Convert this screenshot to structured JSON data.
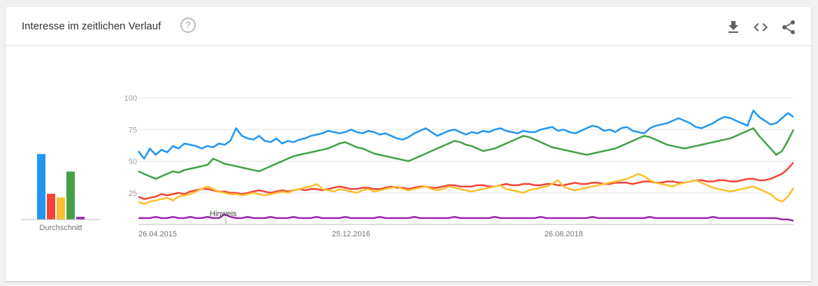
{
  "header": {
    "title": "Interesse im zeitlichen Verlauf",
    "help_icon": "help-circle-icon",
    "help_glyph": "?",
    "tools": [
      "download-icon",
      "embed-code-icon",
      "share-icon"
    ]
  },
  "avg_label": "Durchschnitt",
  "note_label": "Hinweis",
  "colors": [
    "#2196f3",
    "#f44336",
    "#fbc02d",
    "#43a047",
    "#9c27b0"
  ],
  "chart_data": [
    {
      "type": "bar",
      "categories": [
        "",
        "",
        "",
        "",
        ""
      ],
      "values": [
        71,
        28,
        24,
        52,
        3
      ],
      "xlabel": "Durchschnitt",
      "ylim": [
        0,
        100
      ]
    },
    {
      "type": "line",
      "x_tick_labels": [
        "26.04.2015",
        "25.12.2016",
        "26.08.2018"
      ],
      "y_ticks": [
        25,
        50,
        75,
        100
      ],
      "ylim": [
        0,
        100
      ],
      "grid": true,
      "series": [
        {
          "values": [
            58,
            52,
            60,
            55,
            59,
            57,
            62,
            60,
            64,
            63,
            62,
            60,
            62,
            61,
            64,
            63,
            66,
            76,
            70,
            68,
            67,
            70,
            66,
            65,
            68,
            64,
            66,
            65,
            67,
            68,
            70,
            71,
            72,
            74,
            73,
            72,
            73,
            75,
            73,
            72,
            74,
            73,
            71,
            72,
            70,
            68,
            67,
            69,
            72,
            74,
            76,
            73,
            70,
            72,
            74,
            75,
            73,
            71,
            73,
            72,
            74,
            73,
            75,
            76,
            74,
            73,
            72,
            74,
            73,
            73,
            75,
            76,
            77,
            74,
            75,
            73,
            72,
            74,
            76,
            78,
            77,
            74,
            75,
            73,
            76,
            77,
            74,
            73,
            72,
            76,
            78,
            79,
            80,
            82,
            84,
            82,
            80,
            77,
            76,
            78,
            80,
            83,
            85,
            84,
            82,
            80,
            78,
            90,
            85,
            82,
            79,
            80,
            84,
            88,
            85
          ]
        },
        {
          "values": [
            22,
            20,
            21,
            22,
            24,
            23,
            24,
            25,
            24,
            26,
            27,
            28,
            28,
            27,
            26,
            26,
            25,
            25,
            24,
            25,
            26,
            27,
            26,
            25,
            26,
            27,
            26,
            27,
            28,
            27,
            28,
            28,
            27,
            28,
            29,
            30,
            29,
            28,
            28,
            29,
            29,
            28,
            28,
            29,
            30,
            29,
            29,
            28,
            29,
            30,
            30,
            29,
            29,
            30,
            31,
            31,
            30,
            30,
            30,
            31,
            31,
            30,
            30,
            31,
            32,
            31,
            31,
            32,
            32,
            31,
            31,
            32,
            32,
            31,
            31,
            32,
            33,
            32,
            32,
            33,
            33,
            32,
            32,
            33,
            33,
            33,
            32,
            33,
            34,
            34,
            33,
            33,
            34,
            34,
            33,
            33,
            34,
            35,
            35,
            34,
            34,
            35,
            35,
            34,
            34,
            35,
            36,
            36,
            35,
            35,
            36,
            38,
            40,
            44,
            49
          ]
        },
        {
          "values": [
            18,
            16,
            18,
            19,
            20,
            21,
            19,
            22,
            23,
            24,
            26,
            28,
            30,
            28,
            26,
            25,
            24,
            24,
            23,
            24,
            25,
            24,
            23,
            24,
            25,
            26,
            25,
            27,
            28,
            29,
            30,
            32,
            28,
            27,
            26,
            28,
            27,
            26,
            25,
            27,
            28,
            26,
            27,
            28,
            29,
            30,
            28,
            27,
            28,
            29,
            30,
            28,
            27,
            28,
            30,
            29,
            28,
            27,
            26,
            27,
            28,
            29,
            30,
            31,
            28,
            27,
            26,
            25,
            27,
            28,
            29,
            30,
            32,
            35,
            30,
            28,
            27,
            28,
            29,
            30,
            31,
            32,
            33,
            34,
            35,
            36,
            38,
            40,
            38,
            35,
            33,
            32,
            31,
            30,
            32,
            33,
            34,
            35,
            33,
            31,
            29,
            28,
            27,
            26,
            27,
            28,
            29,
            30,
            28,
            26,
            24,
            20,
            18,
            22,
            29
          ]
        },
        {
          "values": [
            42,
            40,
            38,
            36,
            38,
            40,
            42,
            41,
            43,
            44,
            45,
            46,
            47,
            52,
            50,
            48,
            47,
            46,
            45,
            44,
            43,
            42,
            44,
            46,
            48,
            50,
            52,
            54,
            55,
            56,
            57,
            58,
            59,
            60,
            62,
            64,
            65,
            63,
            61,
            60,
            58,
            56,
            55,
            54,
            53,
            52,
            51,
            50,
            52,
            54,
            56,
            58,
            60,
            62,
            64,
            66,
            65,
            63,
            62,
            60,
            58,
            59,
            60,
            62,
            64,
            66,
            68,
            70,
            69,
            67,
            65,
            63,
            61,
            60,
            59,
            58,
            57,
            56,
            55,
            56,
            57,
            58,
            59,
            60,
            62,
            64,
            66,
            68,
            70,
            69,
            67,
            65,
            63,
            62,
            61,
            60,
            61,
            62,
            63,
            64,
            65,
            66,
            67,
            68,
            70,
            72,
            74,
            76,
            70,
            65,
            60,
            55,
            58,
            66,
            75
          ]
        },
        {
          "values": [
            5,
            5,
            5,
            6,
            5,
            5,
            6,
            5,
            5,
            6,
            5,
            5,
            6,
            5,
            5,
            8,
            6,
            5,
            5,
            6,
            5,
            5,
            5,
            6,
            5,
            5,
            5,
            6,
            5,
            5,
            5,
            6,
            5,
            5,
            5,
            5,
            6,
            5,
            5,
            5,
            5,
            5,
            6,
            5,
            5,
            5,
            5,
            5,
            6,
            5,
            5,
            5,
            5,
            5,
            5,
            6,
            5,
            5,
            5,
            5,
            5,
            5,
            6,
            5,
            5,
            5,
            5,
            5,
            5,
            5,
            6,
            5,
            5,
            5,
            5,
            5,
            5,
            5,
            5,
            6,
            5,
            5,
            5,
            5,
            5,
            5,
            5,
            5,
            5,
            6,
            5,
            5,
            5,
            5,
            5,
            5,
            5,
            5,
            5,
            5,
            6,
            5,
            5,
            5,
            5,
            5,
            5,
            5,
            5,
            5,
            5,
            5,
            4,
            4,
            3
          ]
        }
      ]
    }
  ]
}
